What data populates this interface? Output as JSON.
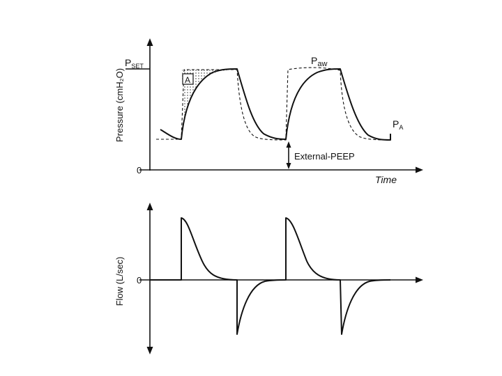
{
  "pressure_panel": {
    "ylabel": "Pressure (cmH₂O)",
    "y_zero": "0",
    "pset_main": "P",
    "pset_sub": "SET",
    "xlabel": "Time",
    "area_label": "A",
    "paw_main": "P",
    "paw_sub": "aw",
    "pa_main": "P",
    "pa_sub": "A",
    "peep_label": "External-PEEP"
  },
  "flow_panel": {
    "ylabel": "Flow (L/sec)",
    "y_zero": "0"
  }
}
